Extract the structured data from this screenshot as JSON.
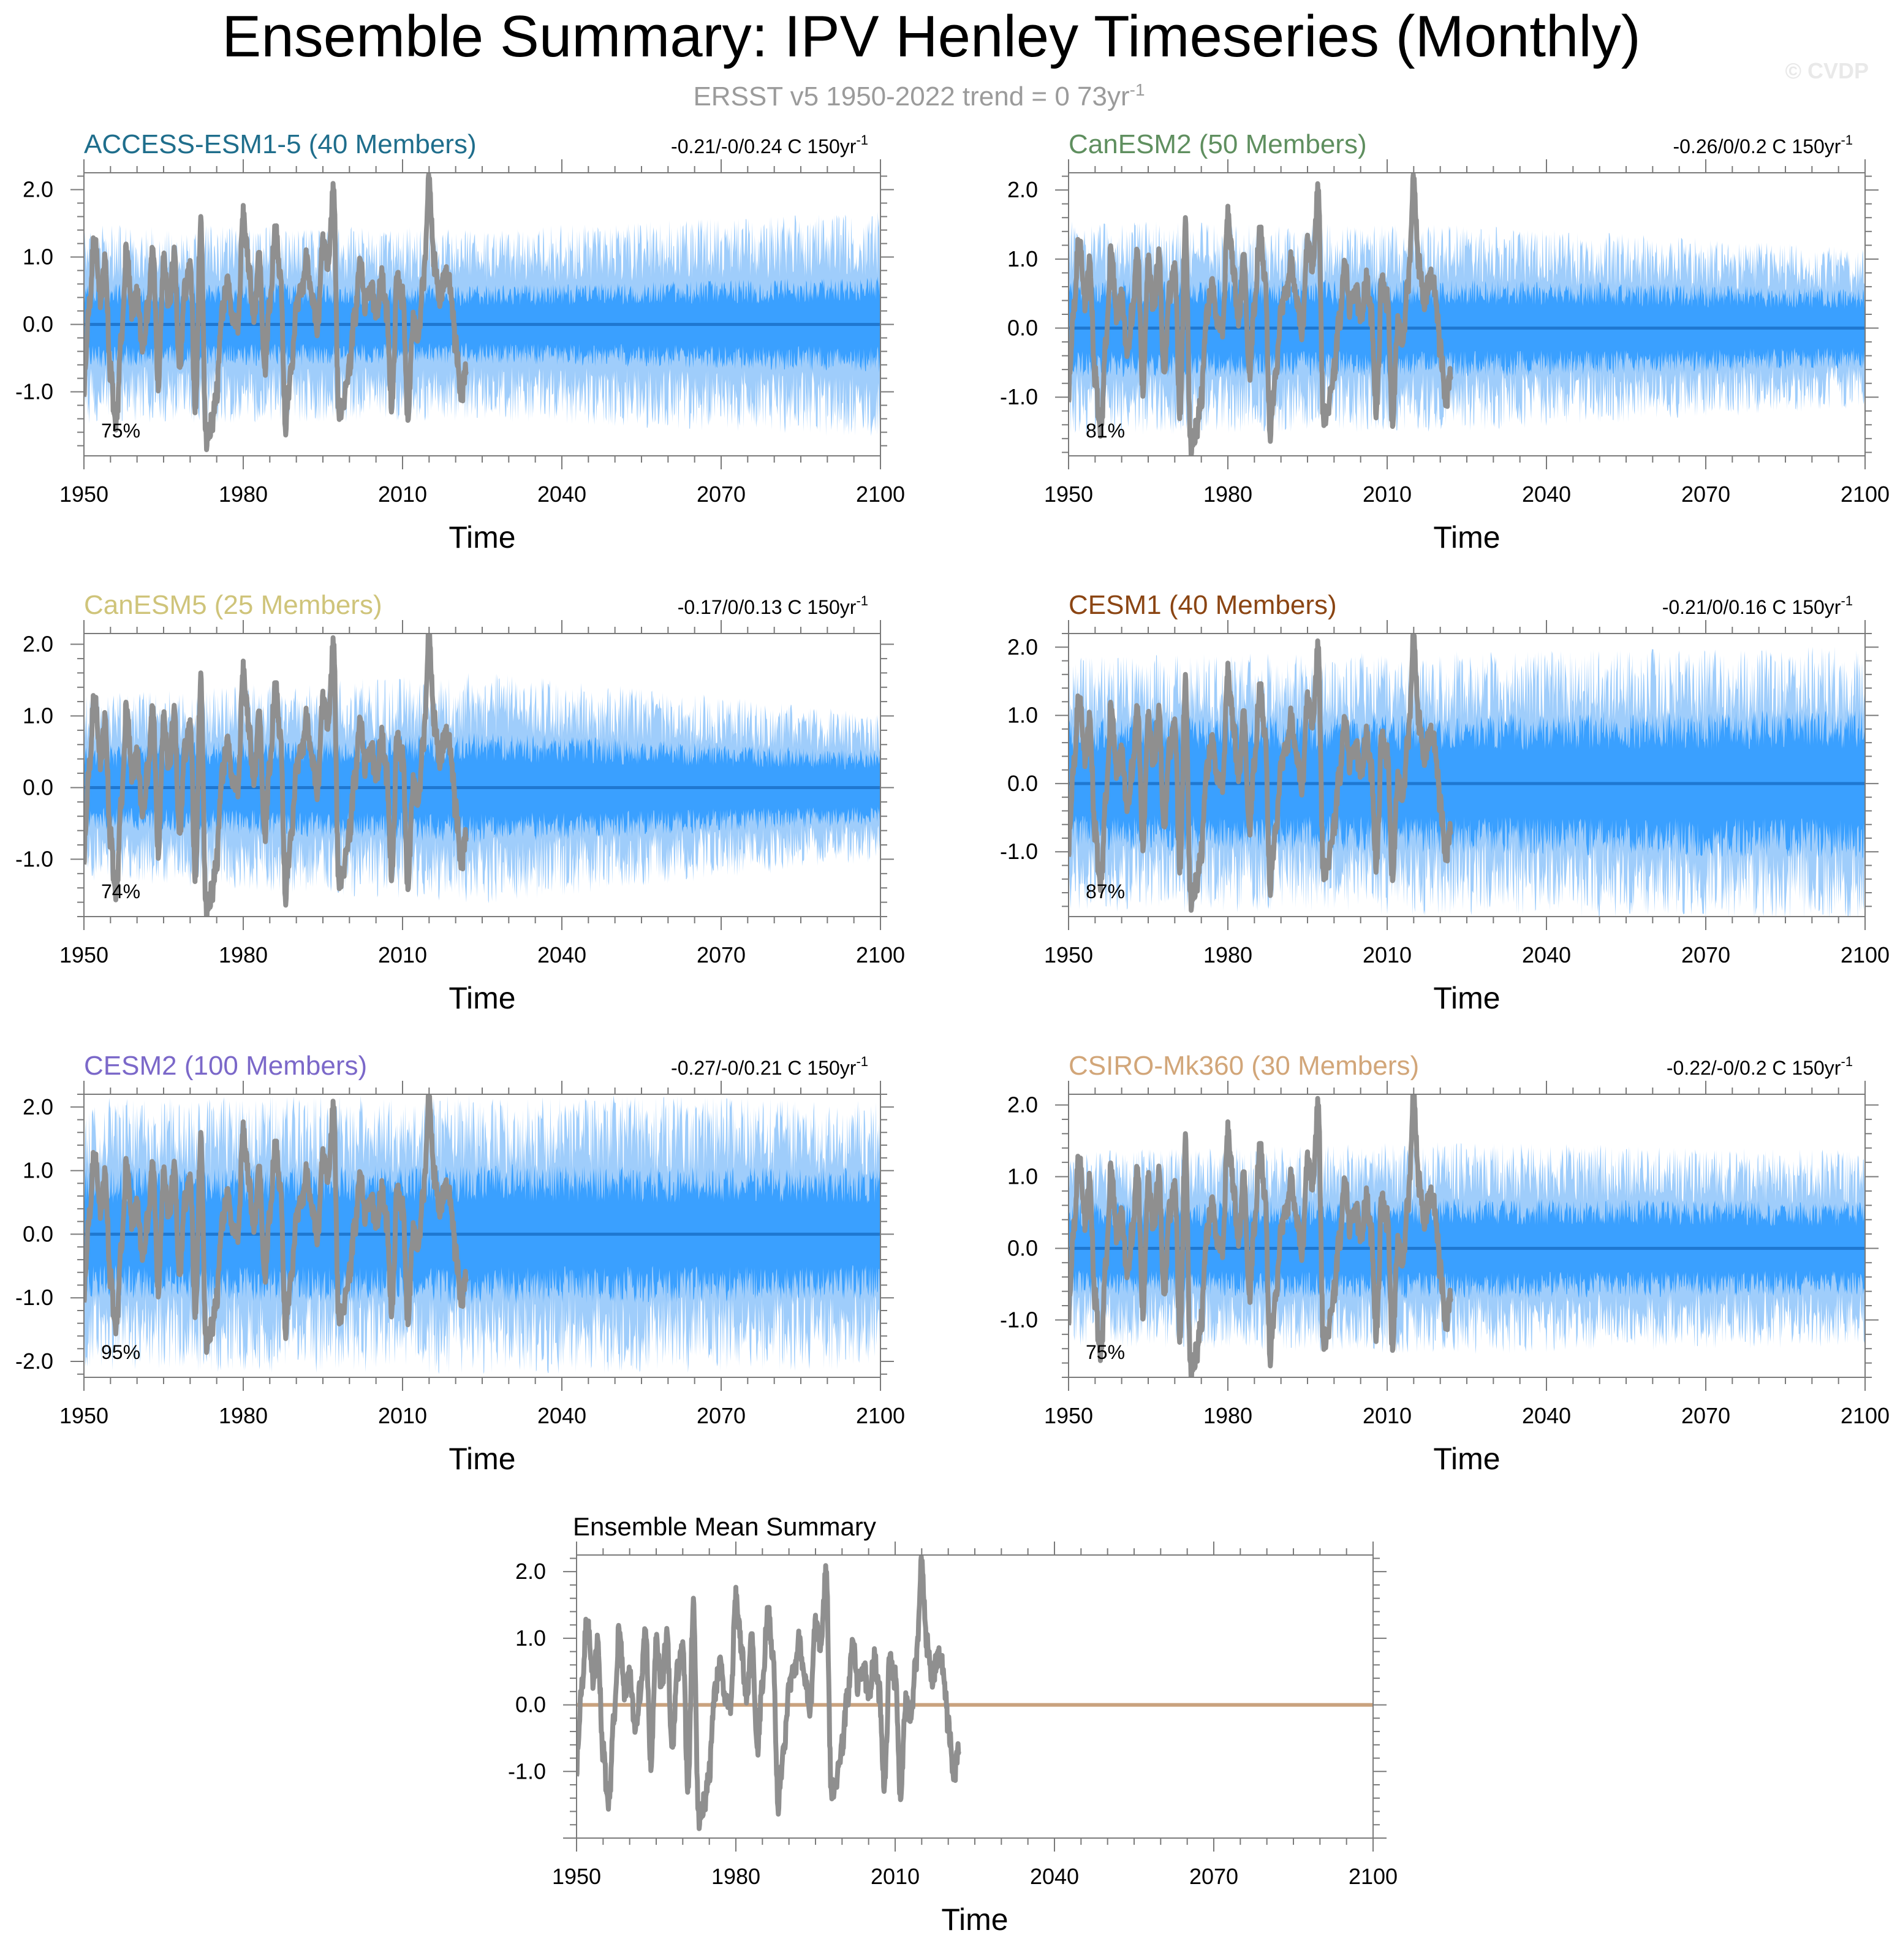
{
  "title": "Ensemble Summary: IPV Henley Timeseries (Monthly)",
  "subtitle": {
    "text": "ERSST v5 1950-2022 trend = 0 73yr",
    "sup": "-1"
  },
  "watermark": "© CVDP",
  "colors": {
    "spread_outer": "#9fcdfb",
    "spread_inner": "#3aa0ff",
    "ensemble_mean_line": "#1f78d1",
    "observations": "#8f8f8f",
    "summary_mean_line": "#c9a27e",
    "axis": "#7a7a7a",
    "text": "#000000"
  },
  "chart_data": [
    {
      "id": "p1",
      "type": "area",
      "title": "ACCESS-ESM1-5 (40 Members)",
      "title_color": "#1f6e8c",
      "trend_text": "-0.21/-0/0.24 C 150yr",
      "trend_sup": "-1",
      "pct_label": "75%",
      "xlabel": "Time",
      "xlim": [
        1950,
        2100
      ],
      "xticks": [
        "1950",
        "1980",
        "2010",
        "2040",
        "2070",
        "2100"
      ],
      "ylim": [
        -1.95,
        2.25
      ],
      "yticks": [
        "2.0",
        "1.0",
        "0.0",
        "-1.0"
      ],
      "spread": {
        "outer_halfwidth": [
          1.15,
          1.1,
          1.3
        ],
        "inner_halfwidth": [
          0.5,
          0.45,
          0.55
        ],
        "seed": 11
      },
      "ensemble_mean": 0.0
    },
    {
      "id": "p2",
      "type": "area",
      "title": "CanESM2 (50 Members)",
      "title_color": "#5f8f5f",
      "trend_text": "-0.26/0/0.2 C 150yr",
      "trend_sup": "-1",
      "pct_label": "81%",
      "xlabel": "Time",
      "xlim": [
        1950,
        2100
      ],
      "xticks": [
        "1950",
        "1980",
        "2010",
        "2040",
        "2070",
        "2100"
      ],
      "ylim": [
        -1.85,
        2.25
      ],
      "yticks": [
        "2.0",
        "1.0",
        "0.0",
        "-1.0"
      ],
      "spread": {
        "outer_halfwidth": [
          1.2,
          1.15,
          0.9
        ],
        "inner_halfwidth": [
          0.55,
          0.55,
          0.45
        ],
        "seed": 23
      },
      "ensemble_mean": 0.0
    },
    {
      "id": "p3",
      "type": "area",
      "title": "CanESM5 (25 Members)",
      "title_color": "#cfc47a",
      "trend_text": "-0.17/0/0.13 C 150yr",
      "trend_sup": "-1",
      "pct_label": "74%",
      "xlabel": "Time",
      "xlim": [
        1950,
        2100
      ],
      "xticks": [
        "1950",
        "1980",
        "2010",
        "2040",
        "2070",
        "2100"
      ],
      "ylim": [
        -1.8,
        2.15
      ],
      "yticks": [
        "2.0",
        "1.0",
        "0.0",
        "-1.0"
      ],
      "spread": {
        "outer_halfwidth": [
          1.0,
          1.25,
          0.8
        ],
        "inner_halfwidth": [
          0.45,
          0.6,
          0.4
        ],
        "seed": 37
      },
      "ensemble_mean": 0.0
    },
    {
      "id": "p4",
      "type": "area",
      "title": "CESM1 (40 Members)",
      "title_color": "#8b4513",
      "trend_text": "-0.21/0/0.16 C 150yr",
      "trend_sup": "-1",
      "pct_label": "87%",
      "xlabel": "Time",
      "xlim": [
        1950,
        2100
      ],
      "xticks": [
        "1950",
        "1980",
        "2010",
        "2040",
        "2070",
        "2100"
      ],
      "ylim": [
        -1.95,
        2.2
      ],
      "yticks": [
        "2.0",
        "1.0",
        "0.0",
        "-1.0"
      ],
      "spread": {
        "outer_halfwidth": [
          1.45,
          1.5,
          1.55
        ],
        "inner_halfwidth": [
          0.75,
          0.8,
          0.85
        ],
        "seed": 41
      },
      "ensemble_mean": 0.0
    },
    {
      "id": "p5",
      "type": "area",
      "title": "CESM2 (100 Members)",
      "title_color": "#7b68c9",
      "trend_text": "-0.27/-0/0.21 C 150yr",
      "trend_sup": "-1",
      "pct_label": "95%",
      "xlabel": "Time",
      "xlim": [
        1950,
        2100
      ],
      "xticks": [
        "1950",
        "1980",
        "2010",
        "2040",
        "2070",
        "2100"
      ],
      "ylim": [
        -2.25,
        2.2
      ],
      "yticks": [
        "2.0",
        "1.0",
        "0.0",
        "-1.0",
        "-2.0"
      ],
      "spread": {
        "outer_halfwidth": [
          1.65,
          1.7,
          1.65
        ],
        "inner_halfwidth": [
          0.8,
          0.85,
          0.8
        ],
        "seed": 53
      },
      "ensemble_mean": 0.0
    },
    {
      "id": "p6",
      "type": "area",
      "title": "CSIRO-Mk360 (30 Members)",
      "title_color": "#d2a679",
      "trend_text": "-0.22/-0/0.2 C 150yr",
      "trend_sup": "-1",
      "pct_label": "75%",
      "xlabel": "Time",
      "xlim": [
        1950,
        2100
      ],
      "xticks": [
        "1950",
        "1980",
        "2010",
        "2040",
        "2070",
        "2100"
      ],
      "ylim": [
        -1.8,
        2.15
      ],
      "yticks": [
        "2.0",
        "1.0",
        "0.0",
        "-1.0"
      ],
      "spread": {
        "outer_halfwidth": [
          1.05,
          1.15,
          1.05
        ],
        "inner_halfwidth": [
          0.5,
          0.55,
          0.5
        ],
        "seed": 67
      },
      "ensemble_mean": 0.0
    },
    {
      "id": "p7",
      "type": "line",
      "title": "Ensemble Mean Summary",
      "title_color": "#000000",
      "trend_text": "",
      "trend_sup": "",
      "pct_label": "",
      "xlabel": "Time",
      "xlim": [
        1950,
        2100
      ],
      "xticks": [
        "1950",
        "1980",
        "2010",
        "2040",
        "2070",
        "2100"
      ],
      "ylim": [
        -2.0,
        2.25
      ],
      "yticks": [
        "2.0",
        "1.0",
        "0.0",
        "-1.0"
      ],
      "spread": null,
      "ensemble_mean": 0.0
    }
  ],
  "observations": {
    "name": "ERSST v5",
    "x": [
      1950,
      1951,
      1952,
      1953,
      1954,
      1955,
      1956,
      1957,
      1958,
      1959,
      1960,
      1961,
      1962,
      1963,
      1964,
      1965,
      1966,
      1967,
      1968,
      1969,
      1970,
      1971,
      1972,
      1973,
      1974,
      1975,
      1976,
      1977,
      1978,
      1979,
      1980,
      1981,
      1982,
      1983,
      1984,
      1985,
      1986,
      1987,
      1988,
      1989,
      1990,
      1991,
      1992,
      1993,
      1994,
      1995,
      1996,
      1997,
      1998,
      1999,
      2000,
      2001,
      2002,
      2003,
      2004,
      2005,
      2006,
      2007,
      2008,
      2009,
      2010,
      2011,
      2012,
      2013,
      2014,
      2015,
      2016,
      2017,
      2018,
      2019,
      2020,
      2021,
      2022
    ],
    "y": [
      -0.9,
      0.3,
      1.3,
      0.4,
      0.9,
      -0.7,
      -1.6,
      -0.3,
      1.1,
      0.2,
      0.4,
      -0.3,
      0.2,
      1.1,
      -0.9,
      0.9,
      0.3,
      1.0,
      -0.7,
      0.5,
      0.8,
      -1.2,
      1.5,
      -1.7,
      -1.5,
      -1.0,
      0.2,
      0.6,
      0.1,
      0.0,
      1.6,
      0.9,
      0.1,
      1.0,
      -0.7,
      0.3,
      1.4,
      0.7,
      -1.5,
      -0.6,
      0.2,
      0.5,
      1.0,
      0.3,
      -0.1,
      1.2,
      0.9,
      2.0,
      -1.3,
      -1.1,
      -0.6,
      0.1,
      0.9,
      0.3,
      0.6,
      0.1,
      0.7,
      0.2,
      -1.2,
      0.7,
      0.4,
      -1.3,
      0.1,
      -0.2,
      0.7,
      2.1,
      0.9,
      0.4,
      0.7,
      0.6,
      -0.3,
      -1.1,
      -0.7
    ]
  }
}
